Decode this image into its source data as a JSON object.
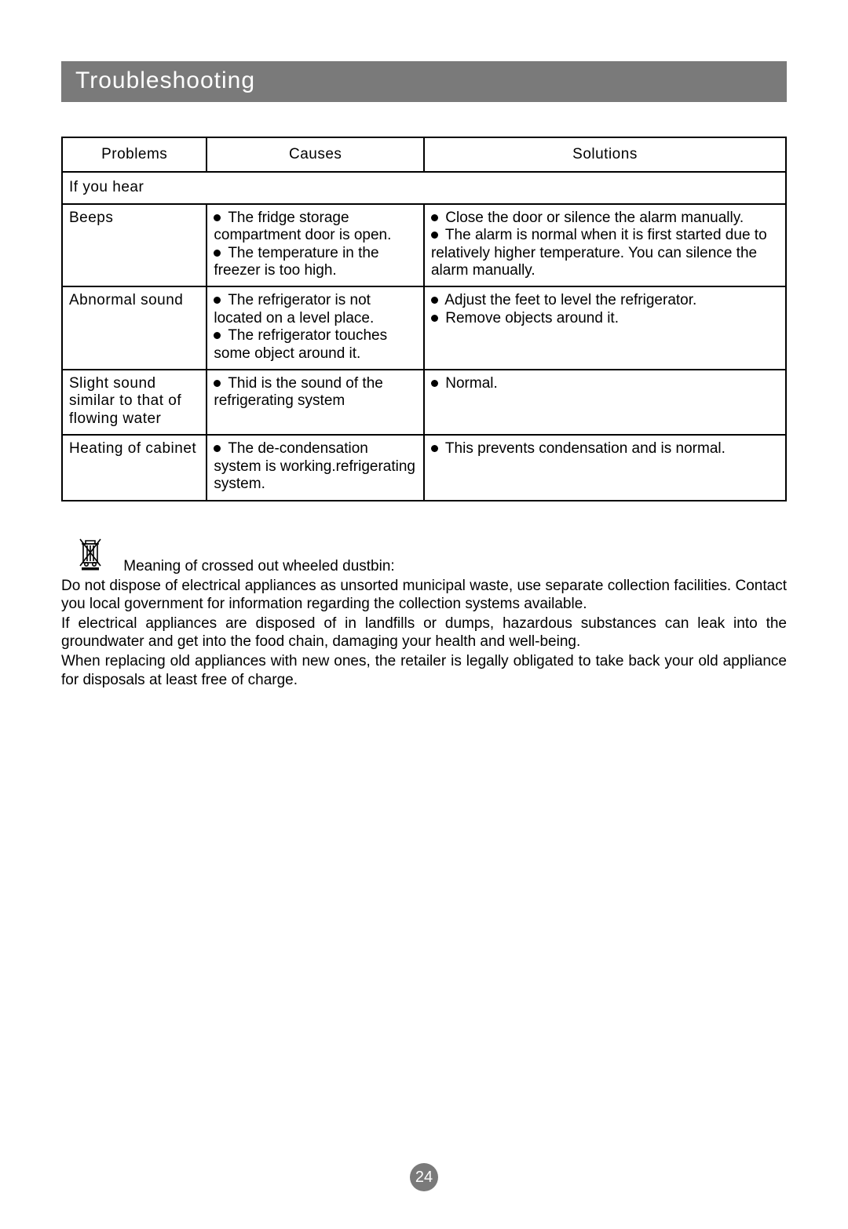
{
  "title": "Troubleshooting",
  "table": {
    "headers": {
      "problems": "Problems",
      "causes": "Causes",
      "solutions": "Solutions"
    },
    "subheader": "If you hear",
    "rows": [
      {
        "problem": "Beeps",
        "causes": [
          "The fridge storage compartment door is open.",
          "The temperature in the freezer is too high."
        ],
        "solutions": [
          "Close the door or silence the alarm manually.",
          "The alarm is normal when it is first started due to relatively higher temperature. You can silence the alarm manually."
        ],
        "causes_justify": true,
        "solutions_justify": true
      },
      {
        "problem": "Abnormal sound",
        "causes": [
          "The refrigerator is not located on a level place.",
          "The refrigerator touches some object around it."
        ],
        "solutions": [
          "Adjust the feet to level the refrigerator.",
          "Remove objects around it."
        ],
        "causes_justify": true,
        "solutions_justify": false
      },
      {
        "problem": "Slight sound similar to that of flowing water",
        "causes": [
          "Thid is the sound of the refrigerating system"
        ],
        "solutions": [
          "Normal."
        ],
        "causes_justify": false,
        "solutions_justify": false
      },
      {
        "problem": "Heating of cabinet",
        "causes": [
          "The de-condensation system is working.refrigerating system."
        ],
        "solutions": [
          "This prevents condensation and is normal."
        ],
        "causes_justify": false,
        "solutions_justify": false
      }
    ]
  },
  "dustbin": {
    "caption": "Meaning of crossed out wheeled dustbin:",
    "p1": "Do not dispose of electrical appliances as unsorted municipal waste, use separate collection facilities. Contact you local government for information regarding the collection systems available.",
    "p2": "If electrical appliances are disposed of in landfills or dumps, hazardous substances can leak into the groundwater and get into the food chain, damaging your health and well-being.",
    "p3": "When replacing old appliances with new ones, the retailer is legally obligated to take back your old appliance for disposals at least free of charge."
  },
  "page_number": "24",
  "colors": {
    "bar_bg": "#7a7a7a",
    "bar_fg": "#ffffff",
    "text": "#000000",
    "border": "#000000"
  }
}
